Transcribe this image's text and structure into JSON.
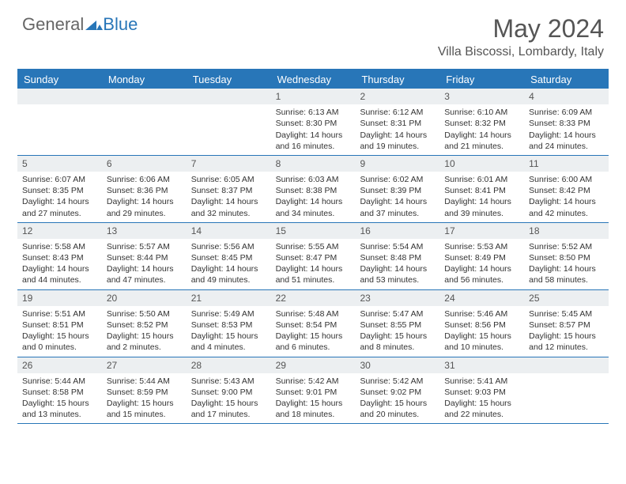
{
  "logo": {
    "text1": "General",
    "text2": "Blue"
  },
  "title": "May 2024",
  "location": "Villa Biscossi, Lombardy, Italy",
  "colors": {
    "accent": "#2876b8",
    "daynum_bg": "#eceff1",
    "text": "#333333",
    "muted": "#555555",
    "bg": "#ffffff"
  },
  "dow": [
    "Sunday",
    "Monday",
    "Tuesday",
    "Wednesday",
    "Thursday",
    "Friday",
    "Saturday"
  ],
  "weeks": [
    [
      {
        "n": "",
        "sr": "",
        "ss": "",
        "dl": ""
      },
      {
        "n": "",
        "sr": "",
        "ss": "",
        "dl": ""
      },
      {
        "n": "",
        "sr": "",
        "ss": "",
        "dl": ""
      },
      {
        "n": "1",
        "sr": "6:13 AM",
        "ss": "8:30 PM",
        "dl": "14 hours and 16 minutes."
      },
      {
        "n": "2",
        "sr": "6:12 AM",
        "ss": "8:31 PM",
        "dl": "14 hours and 19 minutes."
      },
      {
        "n": "3",
        "sr": "6:10 AM",
        "ss": "8:32 PM",
        "dl": "14 hours and 21 minutes."
      },
      {
        "n": "4",
        "sr": "6:09 AM",
        "ss": "8:33 PM",
        "dl": "14 hours and 24 minutes."
      }
    ],
    [
      {
        "n": "5",
        "sr": "6:07 AM",
        "ss": "8:35 PM",
        "dl": "14 hours and 27 minutes."
      },
      {
        "n": "6",
        "sr": "6:06 AM",
        "ss": "8:36 PM",
        "dl": "14 hours and 29 minutes."
      },
      {
        "n": "7",
        "sr": "6:05 AM",
        "ss": "8:37 PM",
        "dl": "14 hours and 32 minutes."
      },
      {
        "n": "8",
        "sr": "6:03 AM",
        "ss": "8:38 PM",
        "dl": "14 hours and 34 minutes."
      },
      {
        "n": "9",
        "sr": "6:02 AM",
        "ss": "8:39 PM",
        "dl": "14 hours and 37 minutes."
      },
      {
        "n": "10",
        "sr": "6:01 AM",
        "ss": "8:41 PM",
        "dl": "14 hours and 39 minutes."
      },
      {
        "n": "11",
        "sr": "6:00 AM",
        "ss": "8:42 PM",
        "dl": "14 hours and 42 minutes."
      }
    ],
    [
      {
        "n": "12",
        "sr": "5:58 AM",
        "ss": "8:43 PM",
        "dl": "14 hours and 44 minutes."
      },
      {
        "n": "13",
        "sr": "5:57 AM",
        "ss": "8:44 PM",
        "dl": "14 hours and 47 minutes."
      },
      {
        "n": "14",
        "sr": "5:56 AM",
        "ss": "8:45 PM",
        "dl": "14 hours and 49 minutes."
      },
      {
        "n": "15",
        "sr": "5:55 AM",
        "ss": "8:47 PM",
        "dl": "14 hours and 51 minutes."
      },
      {
        "n": "16",
        "sr": "5:54 AM",
        "ss": "8:48 PM",
        "dl": "14 hours and 53 minutes."
      },
      {
        "n": "17",
        "sr": "5:53 AM",
        "ss": "8:49 PM",
        "dl": "14 hours and 56 minutes."
      },
      {
        "n": "18",
        "sr": "5:52 AM",
        "ss": "8:50 PM",
        "dl": "14 hours and 58 minutes."
      }
    ],
    [
      {
        "n": "19",
        "sr": "5:51 AM",
        "ss": "8:51 PM",
        "dl": "15 hours and 0 minutes."
      },
      {
        "n": "20",
        "sr": "5:50 AM",
        "ss": "8:52 PM",
        "dl": "15 hours and 2 minutes."
      },
      {
        "n": "21",
        "sr": "5:49 AM",
        "ss": "8:53 PM",
        "dl": "15 hours and 4 minutes."
      },
      {
        "n": "22",
        "sr": "5:48 AM",
        "ss": "8:54 PM",
        "dl": "15 hours and 6 minutes."
      },
      {
        "n": "23",
        "sr": "5:47 AM",
        "ss": "8:55 PM",
        "dl": "15 hours and 8 minutes."
      },
      {
        "n": "24",
        "sr": "5:46 AM",
        "ss": "8:56 PM",
        "dl": "15 hours and 10 minutes."
      },
      {
        "n": "25",
        "sr": "5:45 AM",
        "ss": "8:57 PM",
        "dl": "15 hours and 12 minutes."
      }
    ],
    [
      {
        "n": "26",
        "sr": "5:44 AM",
        "ss": "8:58 PM",
        "dl": "15 hours and 13 minutes."
      },
      {
        "n": "27",
        "sr": "5:44 AM",
        "ss": "8:59 PM",
        "dl": "15 hours and 15 minutes."
      },
      {
        "n": "28",
        "sr": "5:43 AM",
        "ss": "9:00 PM",
        "dl": "15 hours and 17 minutes."
      },
      {
        "n": "29",
        "sr": "5:42 AM",
        "ss": "9:01 PM",
        "dl": "15 hours and 18 minutes."
      },
      {
        "n": "30",
        "sr": "5:42 AM",
        "ss": "9:02 PM",
        "dl": "15 hours and 20 minutes."
      },
      {
        "n": "31",
        "sr": "5:41 AM",
        "ss": "9:03 PM",
        "dl": "15 hours and 22 minutes."
      },
      {
        "n": "",
        "sr": "",
        "ss": "",
        "dl": ""
      }
    ]
  ],
  "labels": {
    "sunrise": "Sunrise: ",
    "sunset": "Sunset: ",
    "daylight": "Daylight: "
  }
}
